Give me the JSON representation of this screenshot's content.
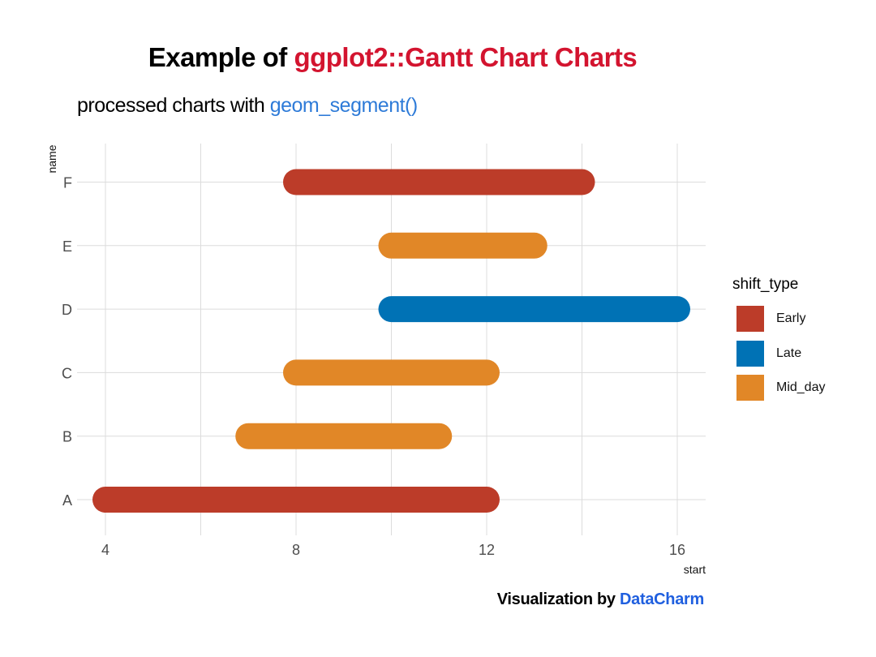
{
  "header": {
    "title_prefix": "Example of ",
    "title_accent": "ggplot2::Gantt Chart Charts",
    "subtitle_prefix": "processed charts with ",
    "subtitle_accent": "geom_segment()",
    "title_accent_color": "#d3142f",
    "subtitle_accent_color": "#2e7bd8"
  },
  "caption": {
    "prefix": "Visualization by ",
    "accent": "DataCharm",
    "accent_color": "#1f5fdf"
  },
  "legend": {
    "title": "shift_type",
    "items": [
      {
        "label": "Early",
        "color": "#bc3c29"
      },
      {
        "label": "Late",
        "color": "#0072b5"
      },
      {
        "label": "Mid_day",
        "color": "#e18727"
      }
    ]
  },
  "axes": {
    "x_label": "start",
    "y_label": "name",
    "x_ticks": [
      "4",
      "8",
      "12",
      "16"
    ],
    "y_ticks": [
      "A",
      "B",
      "C",
      "D",
      "E",
      "F"
    ]
  },
  "chart_data": {
    "type": "bar",
    "subtype": "gantt",
    "title": "Example of ggplot2::Gantt Chart Charts",
    "subtitle": "processed charts with geom_segment()",
    "caption": "Visualization by DataCharm",
    "xlabel": "start",
    "ylabel": "name",
    "xlim": [
      3.6,
      16.6
    ],
    "x_ticks": [
      4,
      8,
      12,
      16
    ],
    "categories": [
      "A",
      "B",
      "C",
      "D",
      "E",
      "F"
    ],
    "legend_title": "shift_type",
    "legend_position": "right",
    "grid": true,
    "segments": [
      {
        "name": "A",
        "start": 4,
        "end": 12,
        "shift_type": "Early"
      },
      {
        "name": "B",
        "start": 7,
        "end": 11,
        "shift_type": "Mid_day"
      },
      {
        "name": "C",
        "start": 8,
        "end": 12,
        "shift_type": "Mid_day"
      },
      {
        "name": "D",
        "start": 10,
        "end": 16,
        "shift_type": "Late"
      },
      {
        "name": "E",
        "start": 10,
        "end": 13,
        "shift_type": "Mid_day"
      },
      {
        "name": "F",
        "start": 8,
        "end": 14,
        "shift_type": "Early"
      }
    ],
    "colors": {
      "Early": "#bc3c29",
      "Late": "#0072b5",
      "Mid_day": "#e18727"
    }
  }
}
